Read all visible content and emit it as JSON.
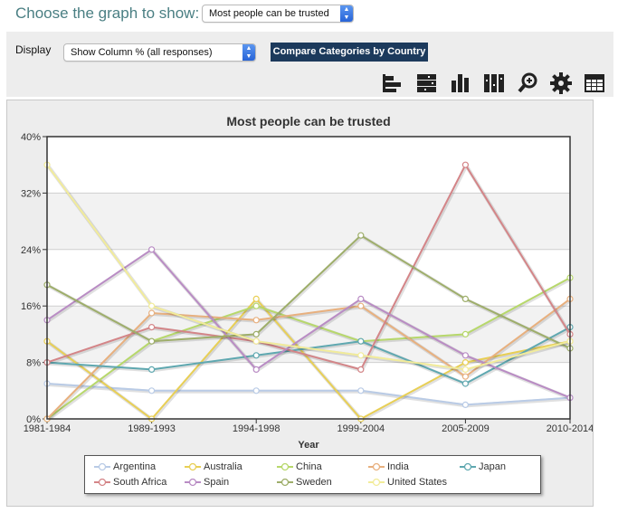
{
  "header": {
    "choose_label": "Choose the graph to show:",
    "graph_select_value": "Most people can be trusted"
  },
  "display": {
    "label": "Display",
    "select_value": "Show Column % (all responses)",
    "compare_button": "Compare Categories by Country"
  },
  "toolbar": {
    "icons": [
      "bar-horizontal-icon",
      "stacked-horizontal-icon",
      "bar-vertical-icon",
      "stacked-vertical-icon",
      "zoom-icon",
      "gear-icon",
      "table-icon"
    ]
  },
  "chart_data": {
    "type": "line",
    "title": "Most people can be trusted",
    "xlabel": "Year",
    "ylabel": "",
    "categories": [
      "1981-1984",
      "1989-1993",
      "1994-1998",
      "1999-2004",
      "2005-2009",
      "2010-2014"
    ],
    "ylim": [
      0,
      40
    ],
    "yticks": [
      "0%",
      "8%",
      "16%",
      "24%",
      "32%",
      "40%"
    ],
    "grid": true,
    "legend_position": "bottom",
    "series": [
      {
        "name": "Argentina",
        "color": "#b9cbe6",
        "values": [
          5,
          4,
          4,
          4,
          2,
          3
        ]
      },
      {
        "name": "Australia",
        "color": "#e8cf55",
        "values": [
          11,
          0,
          17,
          0,
          8,
          11
        ]
      },
      {
        "name": "China",
        "color": "#b7d86b",
        "values": [
          0,
          11,
          16,
          11,
          12,
          20
        ]
      },
      {
        "name": "India",
        "color": "#e8b07e",
        "values": [
          0,
          15,
          14,
          16,
          6,
          17
        ]
      },
      {
        "name": "Japan",
        "color": "#5fa8b0",
        "values": [
          8,
          7,
          9,
          11,
          5,
          13
        ]
      },
      {
        "name": "South Africa",
        "color": "#d48588",
        "values": [
          8,
          13,
          11,
          7,
          36,
          12
        ]
      },
      {
        "name": "Spain",
        "color": "#b98cc4",
        "values": [
          14,
          24,
          7,
          17,
          9,
          3
        ]
      },
      {
        "name": "Sweden",
        "color": "#9eae6a",
        "values": [
          19,
          11,
          12,
          26,
          17,
          10
        ]
      },
      {
        "name": "United States",
        "color": "#f2ec9a",
        "values": [
          36,
          16,
          11,
          9,
          7,
          11
        ]
      }
    ]
  }
}
